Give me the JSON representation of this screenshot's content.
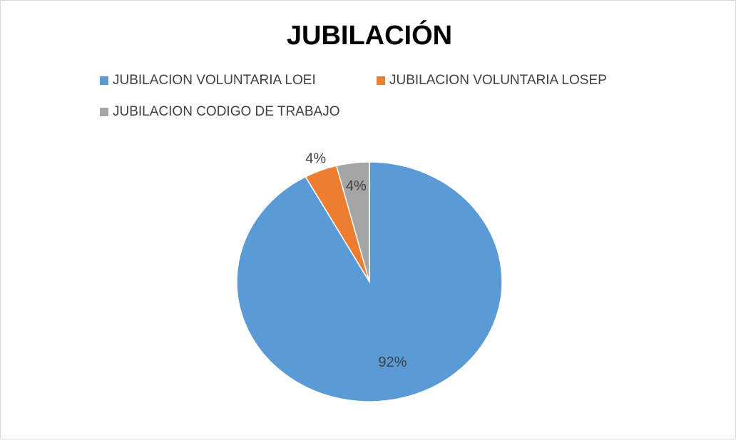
{
  "chart_data": {
    "type": "pie",
    "title": "JUBILACIÓN",
    "categories": [
      "JUBILACION VOLUNTARIA LOEI",
      "JUBILACION VOLUNTARIA LOSEP",
      "JUBILACION CODIGO DE TRABAJO"
    ],
    "values": [
      92,
      4,
      4
    ],
    "value_labels": [
      "92%",
      "4%",
      "4%"
    ],
    "colors": [
      "#5b9bd5",
      "#ed7d31",
      "#a5a5a5"
    ],
    "legend": "top"
  }
}
